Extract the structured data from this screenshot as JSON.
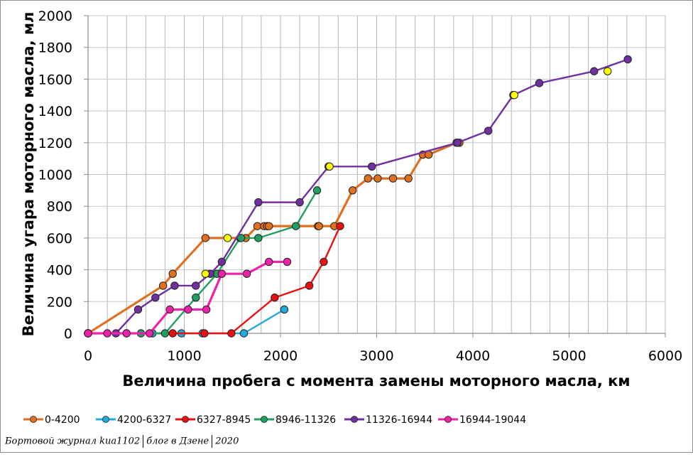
{
  "chart_data": {
    "type": "line",
    "title": "",
    "xlabel": "Величина пробега с момента замены моторного масла, км",
    "ylabel": "Величина угара моторного масла, мл",
    "xlim": [
      0,
      6000
    ],
    "ylim": [
      0,
      2000
    ],
    "x_ticks": [
      0,
      1000,
      2000,
      3000,
      4000,
      5000,
      6000
    ],
    "y_ticks": [
      0,
      200,
      400,
      600,
      800,
      1000,
      1200,
      1400,
      1600,
      1800,
      2000
    ],
    "grid": {
      "x_minor_step": 200,
      "y_step": 200
    },
    "legend_position": "bottom",
    "series": [
      {
        "name": "0-4200",
        "color": "#e07020",
        "width": 3.2,
        "points": [
          [
            0,
            0
          ],
          [
            780,
            300
          ],
          [
            880,
            375
          ],
          [
            1220,
            600
          ],
          [
            1640,
            600
          ],
          [
            1760,
            675
          ],
          [
            1830,
            675
          ],
          [
            1860,
            675
          ],
          [
            1880,
            675
          ],
          [
            2390,
            675
          ],
          [
            2400,
            675
          ],
          [
            2560,
            675
          ],
          [
            2750,
            900
          ],
          [
            2910,
            975
          ],
          [
            3010,
            975
          ],
          [
            3170,
            975
          ],
          [
            3330,
            975
          ],
          [
            3480,
            1125
          ],
          [
            3540,
            1125
          ],
          [
            3830,
            1200
          ],
          [
            3860,
            1200
          ]
        ]
      },
      {
        "name": "4200-6327",
        "color": "#22aadd",
        "width": 2.4,
        "points": [
          [
            0,
            0
          ],
          [
            400,
            0
          ],
          [
            670,
            0
          ],
          [
            970,
            0
          ],
          [
            1190,
            0
          ],
          [
            1620,
            0
          ],
          [
            2040,
            150
          ]
        ]
      },
      {
        "name": "6327-8945",
        "color": "#e81010",
        "width": 2.4,
        "points": [
          [
            0,
            0
          ],
          [
            880,
            0
          ],
          [
            1210,
            0
          ],
          [
            1490,
            0
          ],
          [
            1940,
            225
          ],
          [
            2300,
            300
          ],
          [
            2450,
            450
          ],
          [
            2620,
            675
          ]
        ]
      },
      {
        "name": "8946-11326",
        "color": "#20a060",
        "width": 2.4,
        "points": [
          [
            0,
            0
          ],
          [
            550,
            0
          ],
          [
            800,
            0
          ],
          [
            1120,
            225
          ],
          [
            1340,
            375
          ],
          [
            1580,
            600
          ],
          [
            1590,
            600
          ],
          [
            1770,
            600
          ],
          [
            2160,
            675
          ],
          [
            2380,
            900
          ]
        ]
      },
      {
        "name": "11326-16944",
        "color": "#7030a0",
        "width": 2.4,
        "points": [
          [
            0,
            0
          ],
          [
            290,
            0
          ],
          [
            520,
            150
          ],
          [
            700,
            225
          ],
          [
            900,
            300
          ],
          [
            1120,
            300
          ],
          [
            1270,
            375
          ],
          [
            1390,
            450
          ],
          [
            1770,
            825
          ],
          [
            2200,
            825
          ],
          [
            2500,
            1050
          ],
          [
            2950,
            1050
          ],
          [
            3840,
            1200
          ],
          [
            4160,
            1275
          ],
          [
            4420,
            1500
          ],
          [
            4690,
            1575
          ],
          [
            5260,
            1650
          ],
          [
            5610,
            1725
          ]
        ]
      },
      {
        "name": "16944-19044",
        "color": "#ee22aa",
        "width": 3.2,
        "points": [
          [
            0,
            0
          ],
          [
            200,
            0
          ],
          [
            400,
            0
          ],
          [
            640,
            0
          ],
          [
            850,
            150
          ],
          [
            1040,
            150
          ],
          [
            1230,
            150
          ],
          [
            1390,
            375
          ],
          [
            1650,
            375
          ],
          [
            1880,
            450
          ],
          [
            2070,
            450
          ]
        ]
      }
    ],
    "highlight_points": {
      "color": "#ffff00",
      "points": [
        [
          1220,
          375
        ],
        [
          1450,
          600
        ],
        [
          2510,
          1050
        ],
        [
          4430,
          1500
        ],
        [
          5400,
          1650
        ]
      ]
    }
  },
  "legend": [
    {
      "label": "0-4200"
    },
    {
      "label": "4200-6327"
    },
    {
      "label": "6327-8945"
    },
    {
      "label": "8946-11326"
    },
    {
      "label": "11326-16944"
    },
    {
      "label": "16944-19044"
    }
  ],
  "footer": {
    "part1": "Бортовой журнал kиа1102",
    "part2": "блог в Дзене",
    "part3": "2020"
  }
}
